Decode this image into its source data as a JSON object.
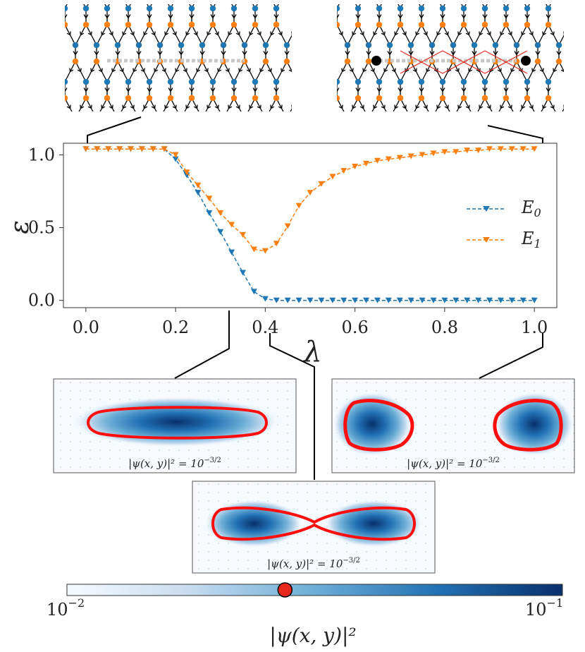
{
  "chart_data": {
    "type": "line",
    "xlabel": "λ",
    "ylabel": "ε",
    "xlim": [
      -0.05,
      1.05
    ],
    "ylim": [
      -0.05,
      1.08
    ],
    "xticks": [
      "0.0",
      "0.2",
      "0.4",
      "0.6",
      "0.8",
      "1.0"
    ],
    "yticks": [
      "0.0",
      "0.5",
      "1.0"
    ],
    "legend_position": "right",
    "grid": false,
    "x": [
      0.0,
      0.025,
      0.05,
      0.075,
      0.1,
      0.125,
      0.15,
      0.175,
      0.2,
      0.225,
      0.25,
      0.275,
      0.3,
      0.325,
      0.35,
      0.375,
      0.4,
      0.425,
      0.45,
      0.475,
      0.5,
      0.525,
      0.55,
      0.575,
      0.6,
      0.625,
      0.65,
      0.675,
      0.7,
      0.725,
      0.75,
      0.775,
      0.8,
      0.825,
      0.85,
      0.875,
      0.9,
      0.925,
      0.95,
      0.975,
      1.0
    ],
    "series": [
      {
        "name": "E_0",
        "label_main": "E",
        "label_sub": "0",
        "color": "#1f77b4",
        "values": [
          1.04,
          1.04,
          1.04,
          1.04,
          1.04,
          1.04,
          1.04,
          1.04,
          0.97,
          0.86,
          0.74,
          0.6,
          0.47,
          0.33,
          0.19,
          0.06,
          0.01,
          0.0,
          0.0,
          0.0,
          0.0,
          0.0,
          0.0,
          0.0,
          0.0,
          0.0,
          0.0,
          0.0,
          0.0,
          0.0,
          0.0,
          0.0,
          0.0,
          0.0,
          0.0,
          0.0,
          0.0,
          0.0,
          0.0,
          0.0,
          0.0
        ]
      },
      {
        "name": "E_1",
        "label_main": "E",
        "label_sub": "1",
        "color": "#ff7f0e",
        "values": [
          1.04,
          1.04,
          1.04,
          1.04,
          1.04,
          1.04,
          1.04,
          1.04,
          1.0,
          0.88,
          0.79,
          0.7,
          0.6,
          0.52,
          0.45,
          0.35,
          0.34,
          0.39,
          0.51,
          0.65,
          0.74,
          0.8,
          0.85,
          0.89,
          0.92,
          0.94,
          0.96,
          0.97,
          0.98,
          0.99,
          1.0,
          1.01,
          1.02,
          1.02,
          1.03,
          1.03,
          1.04,
          1.04,
          1.04,
          1.04,
          1.04
        ]
      }
    ],
    "panels": [
      {
        "caption_main": "|ψ(x, y)|² = 10",
        "caption_exp": "−3/2"
      },
      {
        "caption_main": "|ψ(x, y)|² = 10",
        "caption_exp": "−3/2"
      },
      {
        "caption_main": "|ψ(x, y)|² = 10",
        "caption_exp": "−3/2"
      }
    ],
    "colorbar": {
      "label": "|ψ(x, y)|²",
      "min_base": "10",
      "min_exp": "−2",
      "max_base": "10",
      "max_exp": "−1",
      "marker_fraction": 0.44,
      "marker_color": "#e8271d"
    }
  },
  "colors": {
    "lattice_site_a": "#1f77b4",
    "lattice_site_b": "#ff7f0e",
    "defect_bonds": "#e8271d",
    "density": "#08306b"
  }
}
